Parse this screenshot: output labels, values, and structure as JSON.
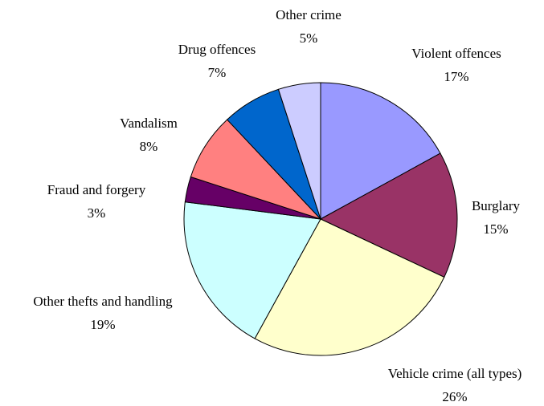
{
  "chart_data": {
    "type": "pie",
    "categories": [
      "Violent offences",
      "Burglary",
      "Vehicle crime (all types)",
      "Other thefts and handling",
      "Fraud and forgery",
      "Vandalism",
      "Drug offences",
      "Other crime"
    ],
    "values": [
      17,
      15,
      26,
      19,
      3,
      8,
      7,
      5
    ],
    "value_labels": [
      "17%",
      "15%",
      "26%",
      "19%",
      "3%",
      "8%",
      "7%",
      "5%"
    ],
    "colors": [
      "#9999ff",
      "#993366",
      "#ffffcc",
      "#ccffff",
      "#660066",
      "#ff8080",
      "#0066cc",
      "#ccccff"
    ]
  }
}
